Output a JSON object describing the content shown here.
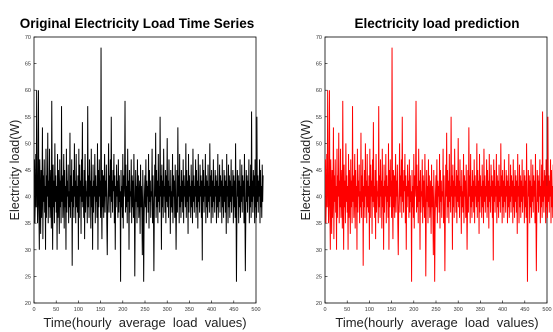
{
  "chart_data": [
    {
      "type": "line",
      "title": "Original Electricity Load Time Series",
      "xlabel": "Time(hourly  average  load  values)",
      "ylabel": "Electricity load(W)",
      "xlim": [
        0,
        500
      ],
      "ylim": [
        20,
        70
      ],
      "xticks": [
        0,
        50,
        100,
        150,
        200,
        250,
        300,
        350,
        400,
        450,
        500
      ],
      "yticks": [
        20,
        25,
        30,
        35,
        40,
        45,
        50,
        55,
        60,
        65,
        70
      ],
      "grid": false,
      "series": [
        {
          "color": "#000000",
          "x_start": 1,
          "x_step": 1,
          "values": [
            47,
            35,
            40,
            48,
            38,
            60,
            43,
            35,
            40,
            60,
            38,
            30,
            47,
            40,
            33,
            45,
            36,
            41,
            53,
            32,
            44,
            39,
            47,
            37,
            42,
            30,
            49,
            36,
            44,
            40,
            52,
            35,
            43,
            38,
            49,
            36,
            41,
            45,
            34,
            58,
            40,
            30,
            46,
            38,
            43,
            35,
            50,
            39,
            44,
            37,
            42,
            30,
            48,
            36,
            45,
            40,
            33,
            47,
            38,
            43,
            35,
            57,
            39,
            44,
            36,
            41,
            48,
            34,
            45,
            38,
            42,
            30,
            49,
            37,
            43,
            40,
            46,
            35,
            41,
            38,
            52,
            36,
            44,
            39,
            47,
            27,
            42,
            38,
            45,
            36,
            50,
            40,
            43,
            35,
            48,
            38,
            42,
            37,
            44,
            30,
            49,
            36,
            46,
            40,
            43,
            33,
            47,
            39,
            54,
            38,
            42,
            36,
            45,
            32,
            48,
            37,
            43,
            40,
            41,
            35,
            57,
            38,
            44,
            36,
            47,
            40,
            43,
            34,
            49,
            38,
            42,
            30,
            46,
            37,
            43,
            40,
            48,
            35,
            44,
            39,
            42,
            36,
            50,
            30,
            45,
            38,
            47,
            40,
            43,
            36,
            68,
            40,
            32,
            45,
            38,
            44,
            36,
            42,
            48,
            37,
            43,
            40,
            46,
            35,
            29,
            38,
            42,
            50,
            37,
            44,
            40,
            47,
            36,
            55,
            39,
            43,
            37,
            45,
            41,
            48,
            35,
            44,
            30,
            42,
            38,
            46,
            40,
            43,
            36,
            47,
            37,
            44,
            39,
            41,
            24,
            45,
            38,
            42,
            36,
            48,
            34,
            44,
            40,
            43,
            58,
            37,
            46,
            38,
            42,
            35,
            49,
            39,
            43,
            30,
            45,
            37,
            41,
            40,
            47,
            35,
            44,
            38,
            43,
            36,
            48,
            40,
            25,
            37,
            45,
            39,
            42,
            35,
            47,
            38,
            44,
            36,
            40,
            43,
            33,
            46,
            38,
            42,
            37,
            29,
            45,
            39,
            24,
            36,
            41,
            44,
            38,
            47,
            35,
            43,
            40,
            42,
            37,
            48,
            34,
            45,
            39,
            43,
            36,
            41,
            40,
            49,
            35,
            44,
            38,
            26,
            37,
            46,
            40,
            52,
            36,
            45,
            38,
            43,
            35,
            48,
            39,
            42,
            37,
            55,
            40,
            44,
            30,
            46,
            38,
            43,
            36,
            49,
            40,
            42,
            37,
            45,
            35,
            44,
            39,
            51,
            38,
            43,
            36,
            47,
            40,
            42,
            33,
            45,
            38,
            41,
            37,
            48,
            35,
            44,
            40,
            43,
            36,
            46,
            39,
            30,
            38,
            45,
            37,
            53,
            40,
            44,
            35,
            48,
            38,
            42,
            36,
            45,
            39,
            43,
            37,
            47,
            35,
            44,
            40,
            42,
            38,
            50,
            36,
            45,
            39,
            43,
            33,
            48,
            37,
            44,
            40,
            42,
            36,
            46,
            38,
            43,
            35,
            49,
            39,
            44,
            37,
            42,
            40,
            47,
            36,
            45,
            38,
            43,
            34,
            48,
            39,
            42,
            37,
            46,
            40,
            44,
            36,
            43,
            28,
            47,
            39,
            45,
            37,
            42,
            40,
            48,
            35,
            44,
            38,
            43,
            36,
            46,
            39,
            42,
            37,
            50,
            40,
            44,
            35,
            45,
            38,
            43,
            36,
            47,
            39,
            42,
            37,
            45,
            40,
            44,
            35,
            43,
            38,
            48,
            36,
            42,
            39,
            46,
            37,
            44,
            40,
            43,
            35,
            47,
            38,
            42,
            36,
            45,
            39,
            44,
            37,
            43,
            33,
            48,
            40,
            42,
            35,
            46,
            38,
            44,
            36,
            43,
            39,
            47,
            37,
            42,
            40,
            45,
            35,
            44,
            38,
            43,
            36,
            50,
            39,
            24,
            37,
            45,
            40,
            44,
            35,
            43,
            38,
            47,
            36,
            42,
            39,
            46,
            37,
            44,
            40,
            43,
            35,
            48,
            38,
            26,
            36,
            45,
            39,
            44,
            37,
            43,
            40,
            47,
            35,
            42,
            38,
            46,
            36,
            56,
            39,
            43,
            37,
            45,
            40,
            44,
            35,
            47,
            38,
            42,
            36,
            55,
            39,
            44,
            37,
            43,
            40,
            47,
            35,
            45,
            38,
            42,
            36,
            46,
            39,
            44
          ]
        }
      ]
    },
    {
      "type": "line",
      "title": "Electricity load prediction",
      "xlabel": "Time(hourly  average  load  values)",
      "ylabel": "Electricity load(W)",
      "xlim": [
        0,
        500
      ],
      "ylim": [
        20,
        70
      ],
      "xticks": [
        0,
        50,
        100,
        150,
        200,
        250,
        300,
        350,
        400,
        450,
        500
      ],
      "yticks": [
        20,
        25,
        30,
        35,
        40,
        45,
        50,
        55,
        60,
        65,
        70
      ],
      "grid": false,
      "series": [
        {
          "color": "#ff0000",
          "x_start": 1,
          "x_step": 1,
          "values": [
            47,
            35,
            40,
            48,
            38,
            60,
            43,
            35,
            40,
            60,
            38,
            30,
            47,
            40,
            33,
            45,
            36,
            41,
            53,
            32,
            44,
            39,
            47,
            37,
            42,
            30,
            49,
            36,
            44,
            40,
            52,
            35,
            43,
            38,
            49,
            36,
            41,
            45,
            34,
            58,
            40,
            30,
            46,
            38,
            43,
            35,
            50,
            39,
            44,
            37,
            42,
            30,
            48,
            36,
            45,
            40,
            33,
            47,
            38,
            43,
            35,
            57,
            39,
            44,
            36,
            41,
            48,
            34,
            45,
            38,
            42,
            30,
            49,
            37,
            43,
            40,
            46,
            35,
            41,
            38,
            52,
            36,
            44,
            39,
            47,
            27,
            42,
            38,
            45,
            36,
            50,
            40,
            43,
            35,
            48,
            38,
            42,
            37,
            44,
            30,
            49,
            36,
            46,
            40,
            43,
            33,
            47,
            39,
            54,
            38,
            42,
            36,
            45,
            32,
            48,
            37,
            43,
            40,
            41,
            35,
            57,
            38,
            44,
            36,
            47,
            40,
            43,
            34,
            49,
            38,
            42,
            30,
            46,
            37,
            43,
            40,
            48,
            35,
            44,
            39,
            42,
            36,
            50,
            30,
            45,
            38,
            47,
            40,
            43,
            36,
            68,
            40,
            32,
            45,
            38,
            44,
            36,
            42,
            48,
            37,
            43,
            40,
            46,
            35,
            29,
            38,
            42,
            50,
            37,
            44,
            40,
            47,
            36,
            55,
            39,
            43,
            37,
            45,
            41,
            48,
            35,
            44,
            30,
            42,
            38,
            46,
            40,
            43,
            36,
            47,
            37,
            44,
            39,
            41,
            24,
            45,
            38,
            42,
            36,
            48,
            34,
            44,
            40,
            43,
            58,
            37,
            46,
            38,
            42,
            35,
            49,
            39,
            43,
            30,
            45,
            37,
            41,
            40,
            47,
            35,
            44,
            38,
            43,
            36,
            48,
            40,
            25,
            37,
            45,
            39,
            42,
            35,
            47,
            38,
            44,
            36,
            40,
            43,
            33,
            46,
            38,
            42,
            37,
            29,
            45,
            39,
            24,
            36,
            41,
            44,
            38,
            47,
            35,
            43,
            40,
            42,
            37,
            48,
            34,
            45,
            39,
            43,
            36,
            41,
            40,
            49,
            35,
            44,
            38,
            26,
            37,
            46,
            40,
            52,
            36,
            45,
            38,
            43,
            35,
            48,
            39,
            42,
            37,
            55,
            40,
            44,
            30,
            46,
            38,
            43,
            36,
            49,
            40,
            42,
            37,
            45,
            35,
            44,
            39,
            51,
            38,
            43,
            36,
            47,
            40,
            42,
            33,
            45,
            38,
            41,
            37,
            48,
            35,
            44,
            40,
            43,
            36,
            46,
            39,
            30,
            38,
            45,
            37,
            53,
            40,
            44,
            35,
            48,
            38,
            42,
            36,
            45,
            39,
            43,
            37,
            47,
            35,
            44,
            40,
            42,
            38,
            50,
            36,
            45,
            39,
            43,
            33,
            48,
            37,
            44,
            40,
            42,
            36,
            46,
            38,
            43,
            35,
            49,
            39,
            44,
            37,
            42,
            40,
            47,
            36,
            45,
            38,
            43,
            34,
            48,
            39,
            42,
            37,
            46,
            40,
            44,
            36,
            43,
            28,
            47,
            39,
            45,
            37,
            42,
            40,
            48,
            35,
            44,
            38,
            43,
            36,
            46,
            39,
            42,
            37,
            50,
            40,
            44,
            35,
            45,
            38,
            43,
            36,
            47,
            39,
            42,
            37,
            45,
            40,
            44,
            35,
            43,
            38,
            48,
            36,
            42,
            39,
            46,
            37,
            44,
            40,
            43,
            35,
            47,
            38,
            42,
            36,
            45,
            39,
            44,
            37,
            43,
            33,
            48,
            40,
            42,
            35,
            46,
            38,
            44,
            36,
            43,
            39,
            47,
            37,
            42,
            40,
            45,
            35,
            44,
            38,
            43,
            36,
            50,
            39,
            24,
            37,
            45,
            40,
            44,
            35,
            43,
            38,
            47,
            36,
            42,
            39,
            46,
            37,
            44,
            40,
            43,
            35,
            48,
            38,
            26,
            36,
            45,
            39,
            44,
            37,
            43,
            40,
            47,
            35,
            42,
            38,
            46,
            36,
            56,
            39,
            43,
            37,
            45,
            40,
            44,
            35,
            47,
            38,
            42,
            36,
            55,
            39,
            44,
            37,
            43,
            40,
            47,
            35,
            45,
            38,
            42,
            36,
            46,
            39,
            44
          ]
        }
      ]
    }
  ]
}
